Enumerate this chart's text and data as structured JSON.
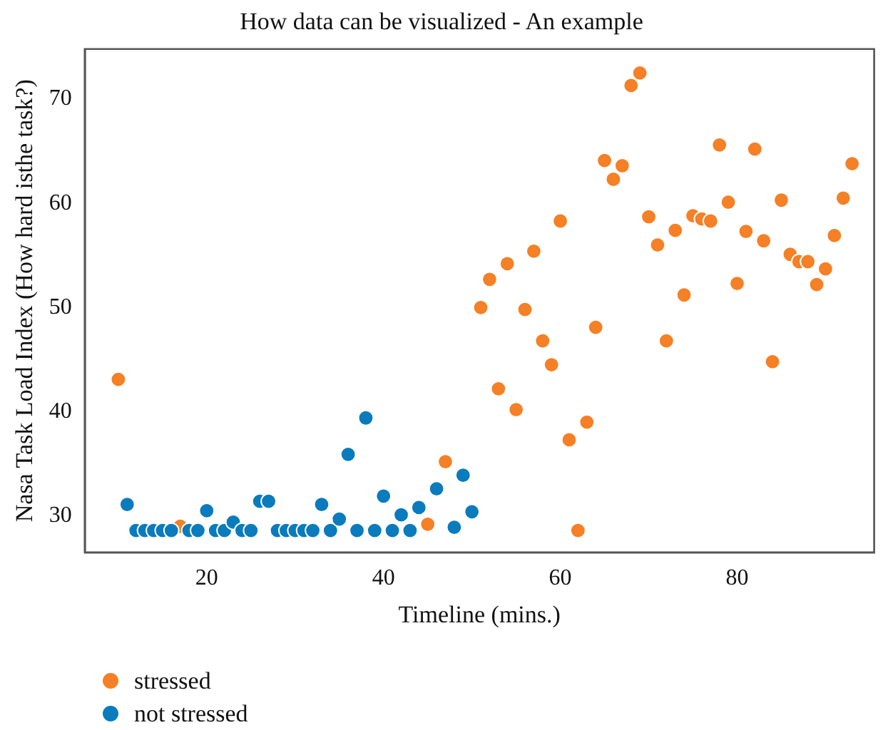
{
  "chart_data": {
    "type": "scatter",
    "title": "How data can be visualized - An example",
    "xlabel": "Timeline (mins.)",
    "ylabel": "Nasa Task Load Index (How hard isthe task?)",
    "xlim": [
      6.2,
      95.5
    ],
    "xticks": [
      20,
      40,
      60,
      80
    ],
    "ylim": [
      26.5,
      74.8
    ],
    "yticks": [
      30,
      40,
      50,
      60,
      70
    ],
    "grid": false,
    "legend": "bottom left",
    "marker": "circle",
    "series": [
      {
        "name": "stressed",
        "color": "#f58025",
        "x": [
          10,
          17,
          45,
          47,
          51,
          52,
          53,
          54,
          55,
          56,
          57,
          58,
          59,
          60,
          61,
          62,
          63,
          64,
          65,
          66,
          67,
          68,
          69,
          70,
          71,
          72,
          73,
          74,
          75,
          76,
          77,
          78,
          79,
          80,
          81,
          82,
          83,
          84,
          85,
          86,
          87,
          88,
          89,
          90,
          91,
          92,
          93
        ],
        "values": [
          43.1,
          29.0,
          29.2,
          35.2,
          50.0,
          52.7,
          42.2,
          54.2,
          40.2,
          49.8,
          55.4,
          46.8,
          44.5,
          58.3,
          37.3,
          28.6,
          39.0,
          48.1,
          64.1,
          62.3,
          63.6,
          71.3,
          72.5,
          58.7,
          56.0,
          46.8,
          57.4,
          51.2,
          58.8,
          58.5,
          58.3,
          65.6,
          60.1,
          52.3,
          57.3,
          65.2,
          56.4,
          44.8,
          60.3,
          55.1,
          54.4,
          54.4,
          52.2,
          53.7,
          56.9,
          60.5,
          63.8
        ]
      },
      {
        "name": "not stressed",
        "color": "#0a7bbd",
        "x": [
          11,
          12,
          13,
          14,
          15,
          16,
          18,
          19,
          20,
          21,
          22,
          23,
          24,
          25,
          26,
          27,
          28,
          29,
          30,
          31,
          32,
          33,
          34,
          35,
          36,
          37,
          38,
          39,
          40,
          41,
          42,
          43,
          44,
          46,
          48,
          49,
          50
        ],
        "values": [
          31.1,
          28.6,
          28.6,
          28.6,
          28.6,
          28.6,
          28.6,
          28.6,
          30.5,
          28.6,
          28.6,
          29.4,
          28.6,
          28.6,
          31.4,
          31.4,
          28.6,
          28.6,
          28.6,
          28.6,
          28.6,
          31.1,
          28.6,
          29.7,
          35.9,
          28.6,
          39.4,
          28.6,
          31.9,
          28.6,
          30.1,
          28.6,
          30.8,
          32.6,
          28.9,
          33.9,
          30.4
        ]
      }
    ]
  }
}
